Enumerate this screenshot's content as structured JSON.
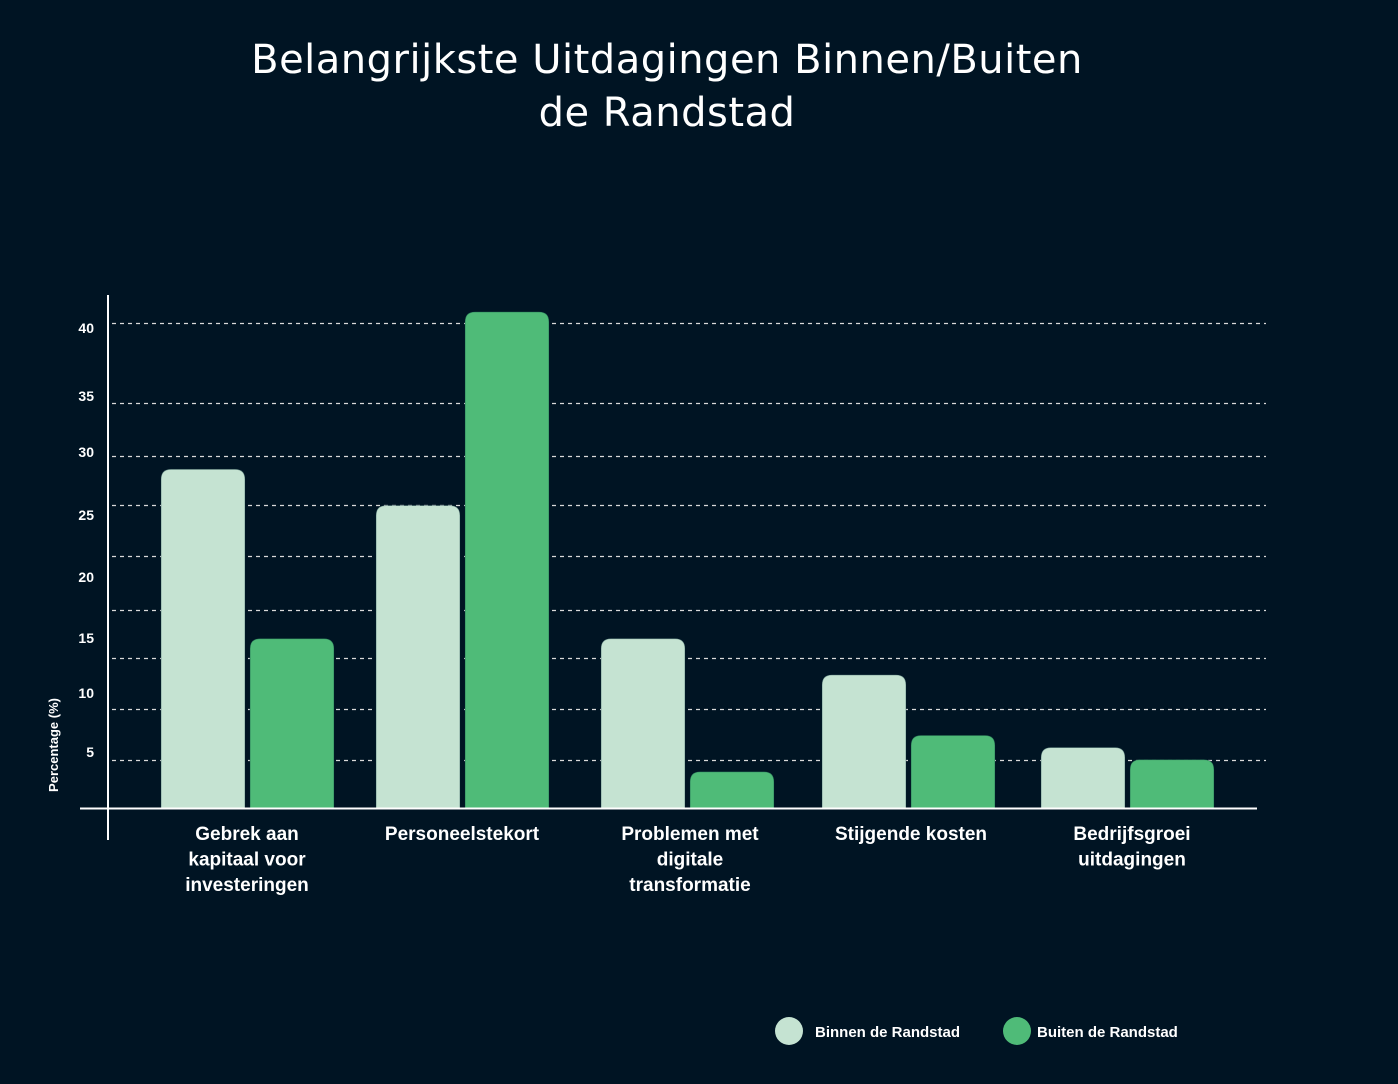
{
  "chart_data": {
    "type": "bar",
    "title": "Belangrijkste Uitdagingen Binnen/Buiten de Randstad",
    "title_lines": [
      "Belangrijkste Uitdagingen Binnen/Buiten",
      "de Randstad"
    ],
    "xlabel": "",
    "ylabel": "Percentage (%)",
    "ylim": [
      0,
      42
    ],
    "yticks": [
      5,
      10,
      15,
      20,
      25,
      30,
      35,
      40
    ],
    "grid": true,
    "legend_position": "bottom-right",
    "categories": [
      "Gebrek aan kapitaal voor investeringen",
      "Personeelstekort",
      "Problemen met digitale transformatie",
      "Stijgende kosten",
      "Bedrijfsgroei uitdagingen"
    ],
    "category_lines": [
      [
        "Gebrek aan",
        "kapitaal voor",
        "investeringen"
      ],
      [
        "Personeelstekort"
      ],
      [
        "Problemen met",
        "digitale",
        "transformatie"
      ],
      [
        "Stijgende kosten"
      ],
      [
        "Bedrijfsgroei",
        "uitdagingen"
      ]
    ],
    "series": [
      {
        "name": "Binnen de Randstad",
        "color": "#c5e3d2",
        "values": [
          28,
          25,
          14,
          11,
          5
        ]
      },
      {
        "name": "Buiten de Randstad",
        "color": "#4fbb78",
        "values": [
          14,
          41,
          3,
          6,
          4
        ]
      }
    ]
  },
  "colors": {
    "background": "#001423",
    "axis": "#ffffff",
    "grid": "#d9d9d9"
  }
}
